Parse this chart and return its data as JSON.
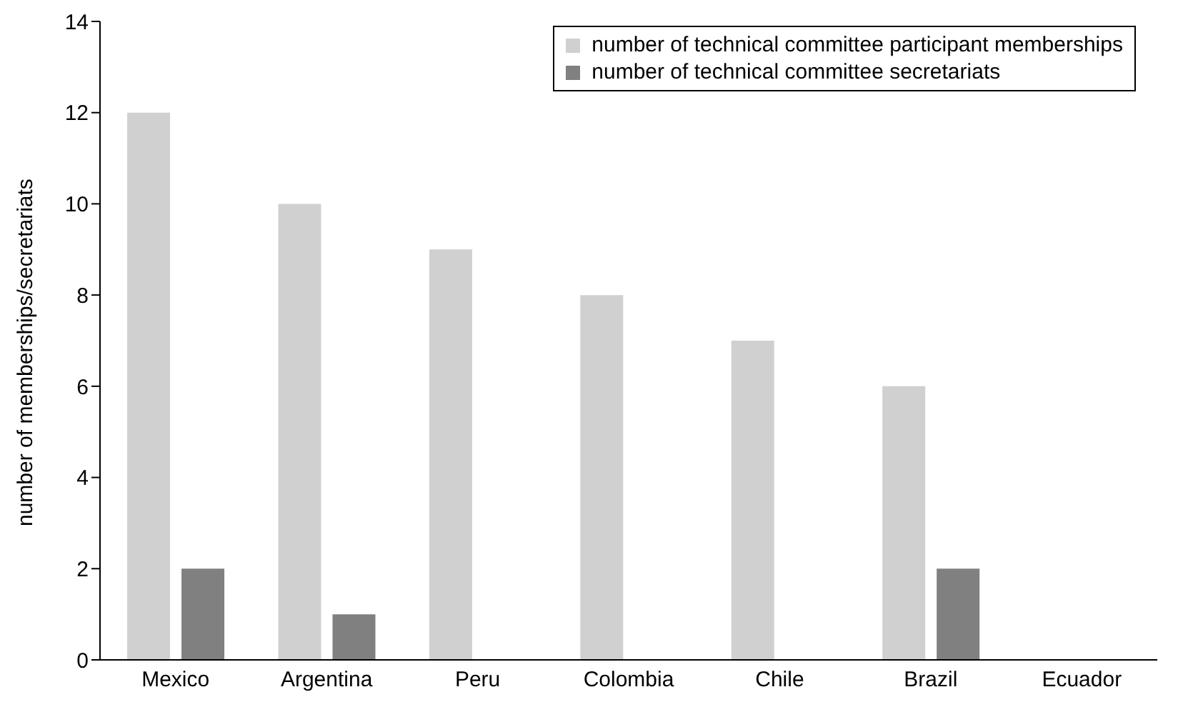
{
  "chart_data": {
    "type": "bar",
    "ylabel": "number of memberships/secretariats",
    "categories": [
      "Mexico",
      "Argentina",
      "Peru",
      "Colombia",
      "Chile",
      "Brazil",
      "Ecuador"
    ],
    "series": [
      {
        "name": "number of technical committee participant memberships",
        "color": "#d0d0d0",
        "values": [
          12,
          10,
          9,
          8,
          7,
          6,
          0
        ]
      },
      {
        "name": "number of technical committee secretariats",
        "color": "#808080",
        "values": [
          2,
          1,
          0,
          0,
          0,
          2,
          0
        ]
      }
    ],
    "ylim": [
      0,
      14
    ],
    "yticks": [
      0,
      2,
      4,
      6,
      8,
      10,
      12,
      14
    ],
    "grid": false,
    "legend": "top right"
  }
}
